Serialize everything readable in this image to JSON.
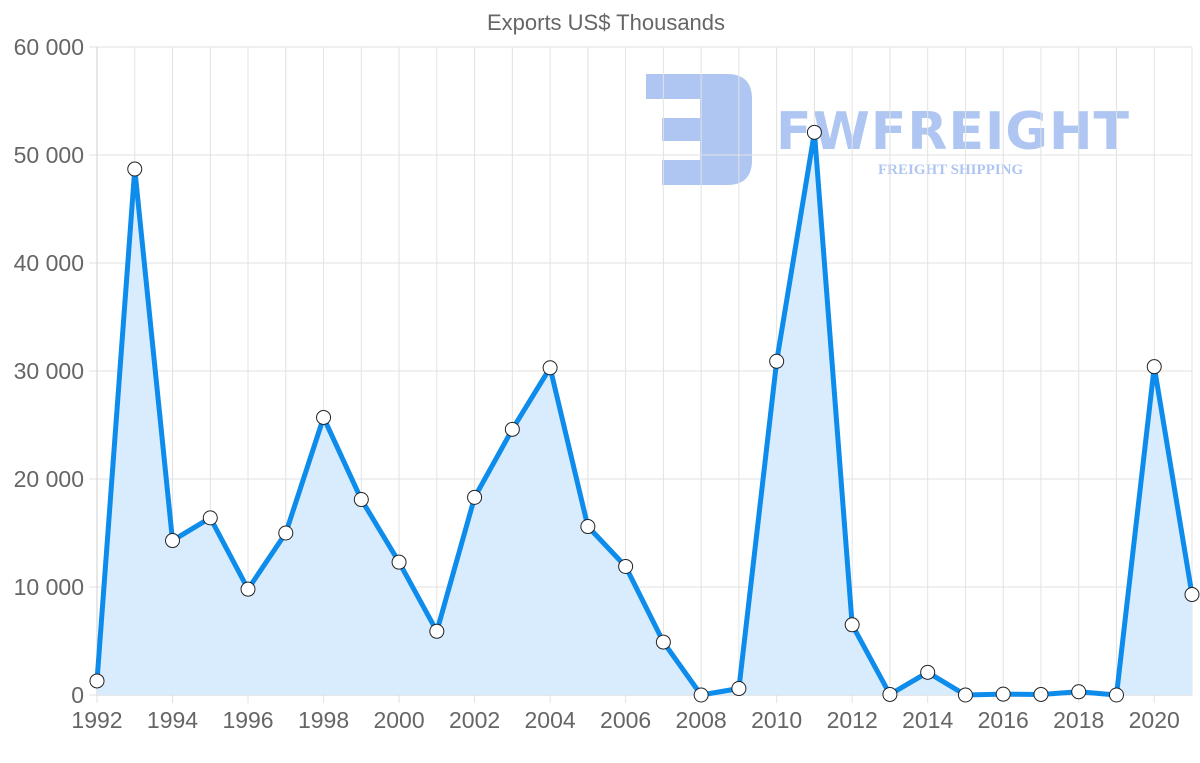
{
  "chart_data": {
    "type": "line",
    "title": "Exports US$ Thousands",
    "xlabel": "",
    "ylabel": "",
    "ylim": [
      0,
      60000
    ],
    "grid": true,
    "legend": null,
    "fill": true,
    "y_ticks": [
      "0",
      "10 000",
      "20 000",
      "30 000",
      "40 000",
      "50 000",
      "60 000"
    ],
    "y_tick_values": [
      0,
      10000,
      20000,
      30000,
      40000,
      50000,
      60000
    ],
    "x_tick_labels": [
      "1992",
      "1994",
      "1996",
      "1998",
      "2000",
      "2002",
      "2004",
      "2006",
      "2008",
      "2010",
      "2012",
      "2014",
      "2016",
      "2018",
      "2020"
    ],
    "x": [
      1992,
      1993,
      1994,
      1995,
      1996,
      1997,
      1998,
      1999,
      2000,
      2001,
      2002,
      2003,
      2004,
      2005,
      2006,
      2007,
      2008,
      2009,
      2010,
      2011,
      2012,
      2013,
      2014,
      2015,
      2016,
      2017,
      2018,
      2019,
      2020,
      2021
    ],
    "series": [
      {
        "name": "Exports US$ Thousands",
        "values": [
          1300,
          48700,
          14300,
          16400,
          9800,
          15000,
          25700,
          18100,
          12300,
          5900,
          18300,
          24600,
          30300,
          15600,
          11900,
          4900,
          0,
          600,
          30900,
          52100,
          6500,
          50,
          2100,
          0,
          80,
          50,
          300,
          0,
          30400,
          9300
        ]
      }
    ],
    "colors": {
      "line": "#0d8cec",
      "fill": "#d8ecfd",
      "point_fill": "#ffffff",
      "point_stroke": "#222222"
    }
  },
  "watermark": {
    "brand": "FWFREIGHT",
    "tagline": "FREIGHT SHIPPING",
    "color": "#aec6f1"
  }
}
